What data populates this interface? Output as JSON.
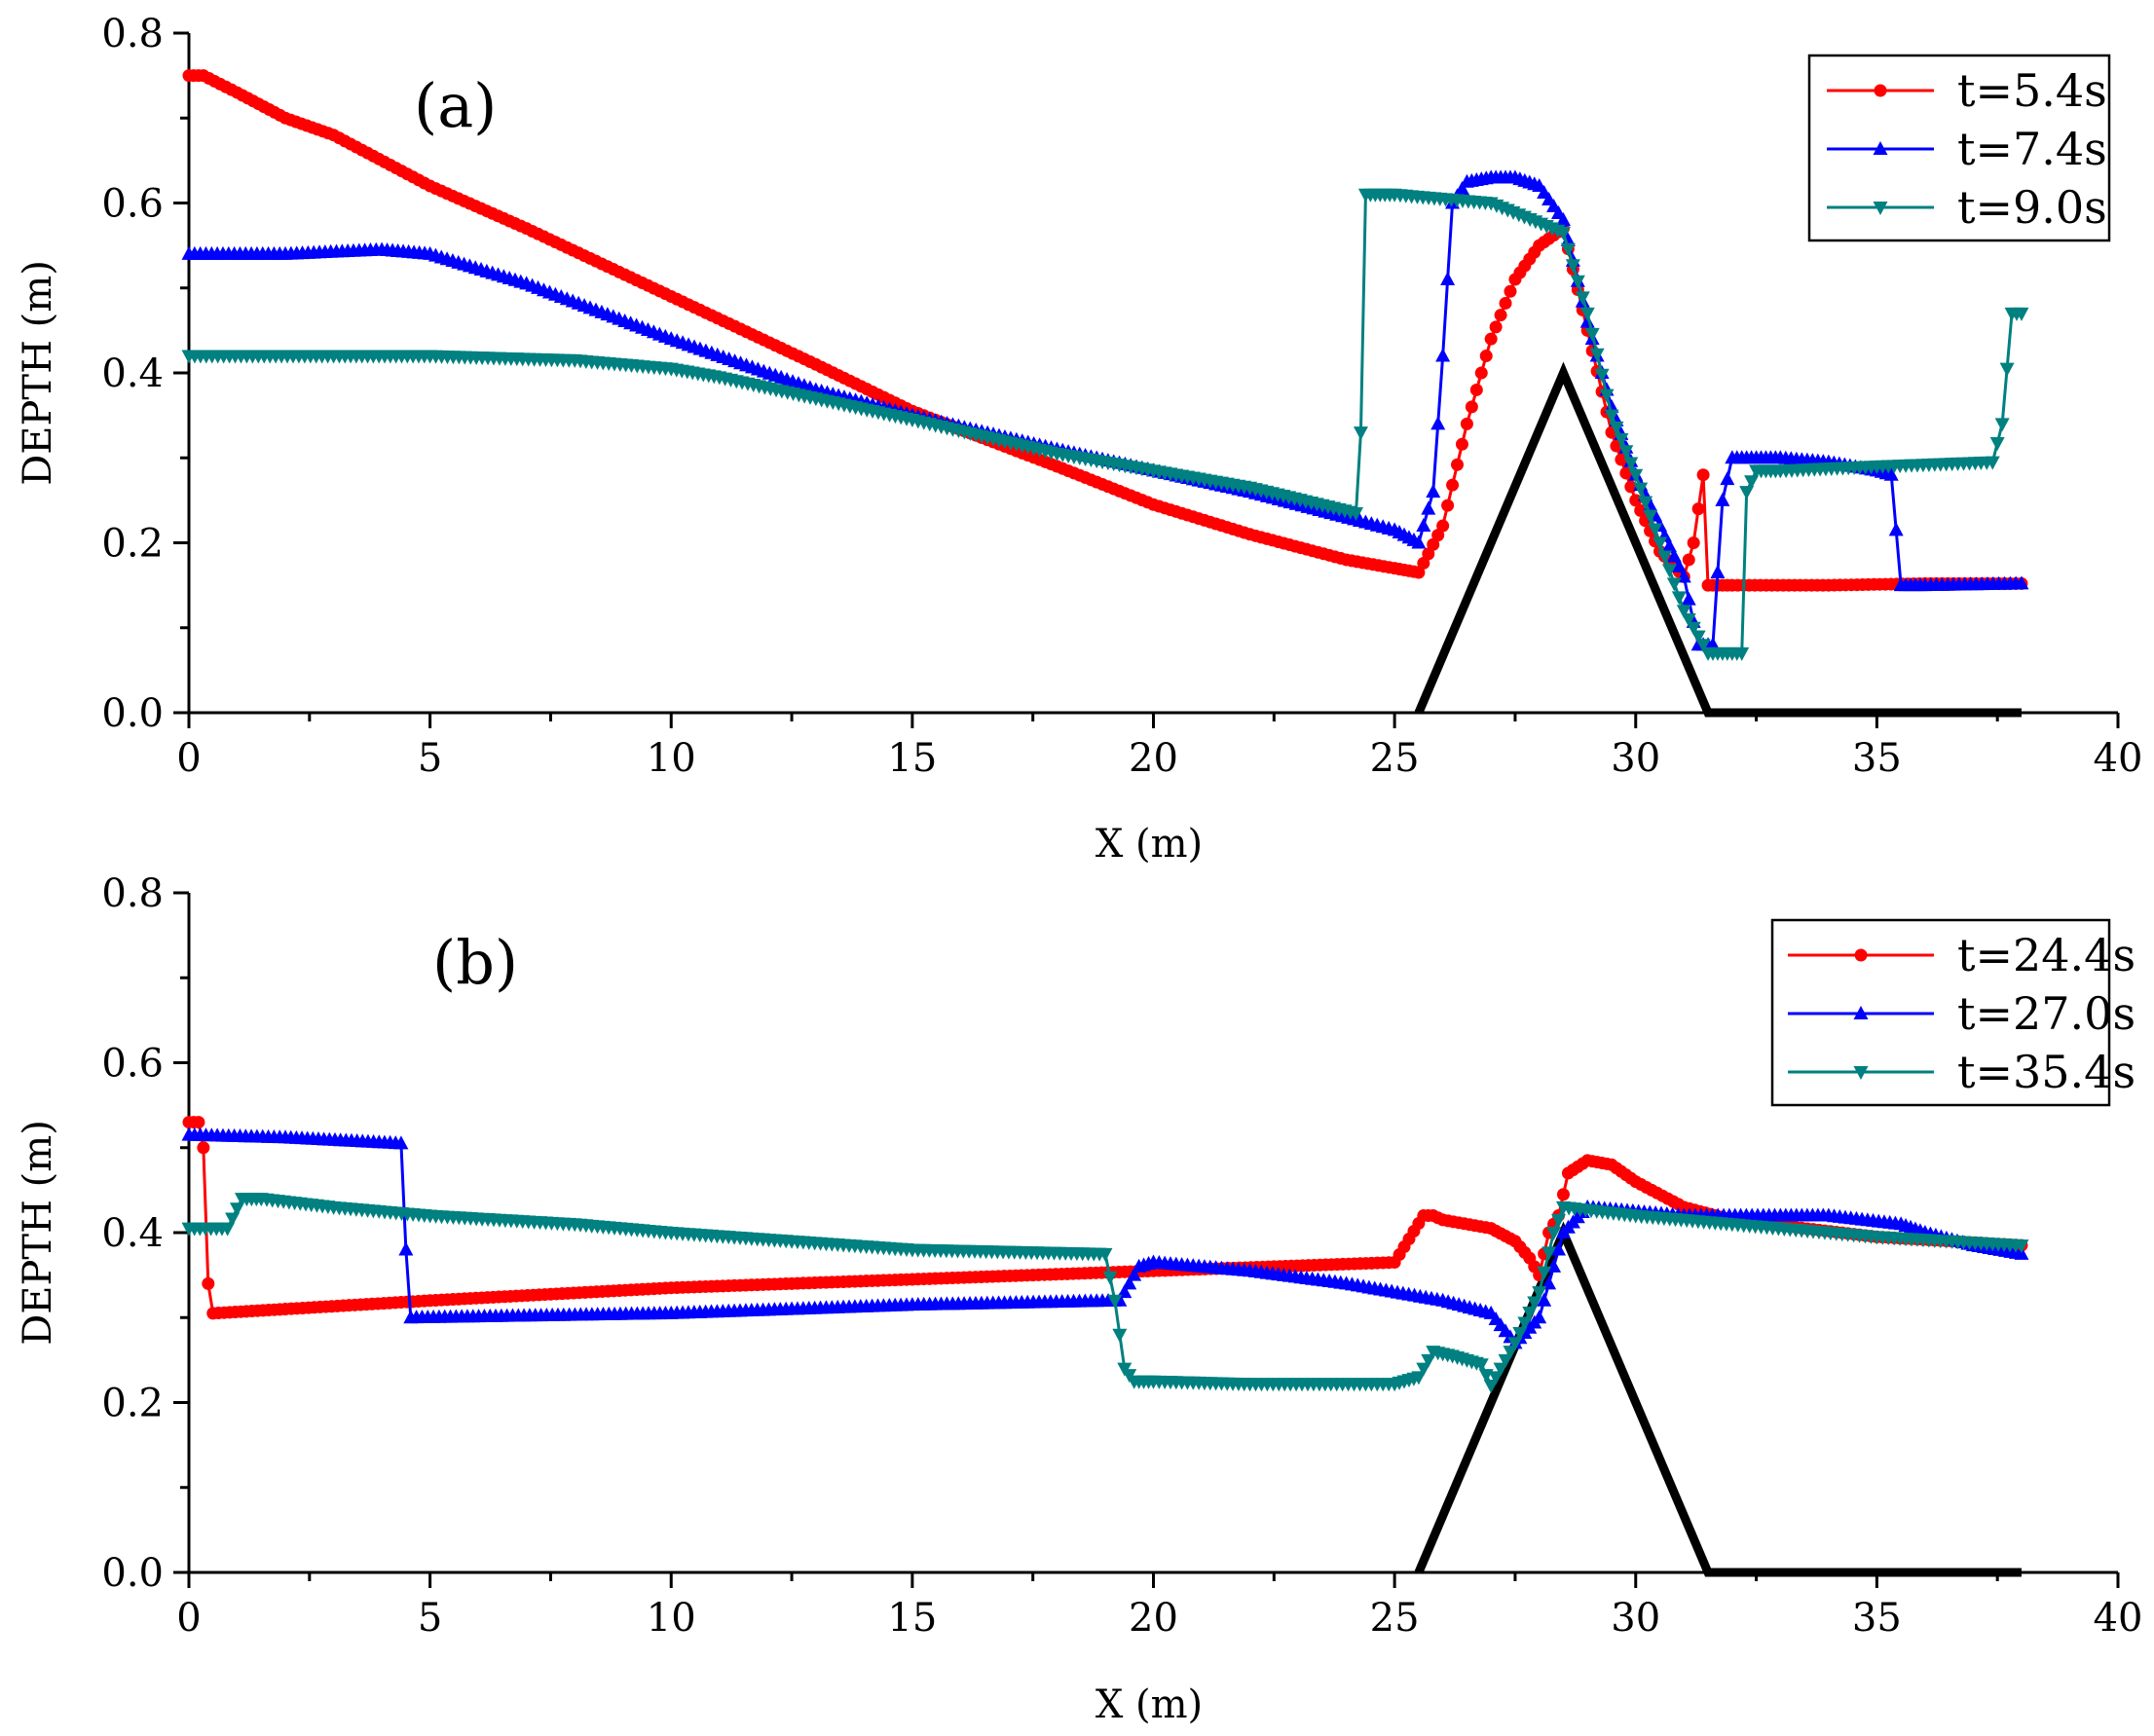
{
  "chart_data": [
    {
      "type": "line",
      "panel_label": "(a)",
      "xlabel": "X (m)",
      "ylabel": "DEPTH (m)",
      "xlim": [
        0,
        40
      ],
      "ylim": [
        0.0,
        0.8
      ],
      "xticks": [
        0,
        5,
        10,
        15,
        20,
        25,
        30,
        35,
        40
      ],
      "xtick_labels": [
        "0",
        "5",
        "10",
        "15",
        "20",
        "25",
        "30",
        "35",
        "40"
      ],
      "yticks": [
        0.0,
        0.2,
        0.4,
        0.6,
        0.8
      ],
      "ytick_labels": [
        "0.0",
        "0.2",
        "0.4",
        "0.6",
        "0.8"
      ],
      "legend_position": "top-right",
      "obstacle": {
        "x": [
          25.5,
          28.5,
          31.5,
          38
        ],
        "y": [
          0.0,
          0.4,
          0.0,
          0.0
        ]
      },
      "series": [
        {
          "name": "t=5.4s",
          "color": "#ff0000",
          "marker": "circle",
          "x": [
            0,
            0.3,
            1,
            2,
            3,
            5,
            7,
            10,
            13,
            15,
            18,
            20,
            22,
            24,
            25,
            25.5,
            26,
            26.5,
            27,
            27.5,
            28,
            28.5,
            29,
            29.5,
            30,
            30.5,
            31,
            31.2,
            31.4,
            31.5,
            32,
            34,
            36,
            38
          ],
          "y": [
            0.75,
            0.75,
            0.73,
            0.7,
            0.68,
            0.62,
            0.57,
            0.49,
            0.41,
            0.355,
            0.29,
            0.245,
            0.21,
            0.18,
            0.17,
            0.165,
            0.22,
            0.34,
            0.44,
            0.51,
            0.55,
            0.57,
            0.45,
            0.33,
            0.25,
            0.19,
            0.16,
            0.2,
            0.28,
            0.15,
            0.15,
            0.15,
            0.152,
            0.152
          ]
        },
        {
          "name": "t=7.4s",
          "color": "#0000ff",
          "marker": "triangle-up",
          "x": [
            0,
            2,
            4,
            5,
            7,
            10,
            13,
            15,
            18,
            20,
            22,
            25,
            25.5,
            25.8,
            26,
            26.2,
            26.5,
            27,
            27.5,
            28,
            28.5,
            29,
            29.5,
            30,
            30.5,
            31,
            31.3,
            31.6,
            31.8,
            32,
            32.5,
            33,
            34,
            35,
            35.3,
            35.5,
            36,
            38
          ],
          "y": [
            0.54,
            0.54,
            0.545,
            0.54,
            0.505,
            0.44,
            0.38,
            0.35,
            0.31,
            0.285,
            0.26,
            0.215,
            0.2,
            0.26,
            0.42,
            0.6,
            0.625,
            0.63,
            0.63,
            0.62,
            0.58,
            0.46,
            0.36,
            0.28,
            0.22,
            0.16,
            0.08,
            0.08,
            0.25,
            0.3,
            0.3,
            0.3,
            0.295,
            0.285,
            0.28,
            0.15,
            0.15,
            0.152
          ]
        },
        {
          "name": "t=9.0s",
          "color": "#008080",
          "marker": "triangle-down",
          "x": [
            0,
            3,
            5,
            8,
            10,
            11,
            13,
            15,
            18,
            20,
            22,
            24.2,
            24.3,
            24.4,
            25,
            27,
            28.5,
            29,
            29.5,
            30,
            30.5,
            31,
            31.5,
            32,
            32.2,
            32.3,
            32.5,
            33,
            35,
            37.4,
            37.6,
            37.8,
            38
          ],
          "y": [
            0.42,
            0.42,
            0.42,
            0.415,
            0.405,
            0.395,
            0.37,
            0.345,
            0.305,
            0.285,
            0.265,
            0.235,
            0.33,
            0.61,
            0.61,
            0.6,
            0.565,
            0.47,
            0.35,
            0.28,
            0.2,
            0.12,
            0.07,
            0.07,
            0.07,
            0.26,
            0.285,
            0.285,
            0.29,
            0.295,
            0.34,
            0.47,
            0.47
          ]
        }
      ]
    },
    {
      "type": "line",
      "panel_label": "(b)",
      "xlabel": "X (m)",
      "ylabel": "DEPTH (m)",
      "xlim": [
        0,
        40
      ],
      "ylim": [
        0.0,
        0.8
      ],
      "xticks": [
        0,
        5,
        10,
        15,
        20,
        25,
        30,
        35,
        40
      ],
      "xtick_labels": [
        "0",
        "5",
        "10",
        "15",
        "20",
        "25",
        "30",
        "35",
        "40"
      ],
      "yticks": [
        0.0,
        0.2,
        0.4,
        0.6,
        0.8
      ],
      "ytick_labels": [
        "0.0",
        "0.2",
        "0.4",
        "0.6",
        "0.8"
      ],
      "legend_position": "top-right",
      "obstacle": {
        "x": [
          25.5,
          28.5,
          31.5,
          38
        ],
        "y": [
          0.0,
          0.4,
          0.0,
          0.0
        ]
      },
      "series": [
        {
          "name": "t=24.4s",
          "color": "#ff0000",
          "marker": "circle",
          "x": [
            0,
            0.2,
            0.3,
            0.4,
            0.5,
            2,
            5,
            10,
            15,
            20,
            25,
            25.6,
            25.8,
            26,
            27,
            27.5,
            27.8,
            28,
            28.2,
            28.4,
            28.6,
            29,
            29.5,
            30,
            31,
            32,
            35,
            38
          ],
          "y": [
            0.53,
            0.53,
            0.5,
            0.34,
            0.305,
            0.31,
            0.32,
            0.335,
            0.345,
            0.355,
            0.365,
            0.42,
            0.42,
            0.415,
            0.405,
            0.39,
            0.37,
            0.35,
            0.4,
            0.42,
            0.47,
            0.485,
            0.48,
            0.46,
            0.43,
            0.415,
            0.395,
            0.385
          ]
        },
        {
          "name": "t=27.0s",
          "color": "#0000ff",
          "marker": "triangle-up",
          "x": [
            0,
            2,
            4.4,
            4.5,
            4.6,
            10,
            15,
            19.3,
            19.5,
            19.7,
            20,
            22,
            24,
            26,
            27,
            27.5,
            28,
            28.5,
            29,
            31,
            33,
            34,
            35.5,
            36,
            37,
            38
          ],
          "y": [
            0.515,
            0.512,
            0.505,
            0.38,
            0.3,
            0.305,
            0.315,
            0.32,
            0.34,
            0.36,
            0.365,
            0.355,
            0.34,
            0.32,
            0.305,
            0.27,
            0.3,
            0.4,
            0.43,
            0.42,
            0.42,
            0.42,
            0.41,
            0.4,
            0.385,
            0.375
          ]
        },
        {
          "name": "t=35.4s",
          "color": "#008080",
          "marker": "triangle-down",
          "x": [
            0,
            0.8,
            1.1,
            1.5,
            3,
            5,
            8,
            10,
            15,
            19,
            19.2,
            19.4,
            19.6,
            20,
            22,
            25,
            25.5,
            25.8,
            26.2,
            26.8,
            27,
            27.5,
            28,
            28.3,
            28.5,
            30,
            32,
            35,
            38
          ],
          "y": [
            0.405,
            0.405,
            0.44,
            0.44,
            0.43,
            0.42,
            0.41,
            0.4,
            0.38,
            0.375,
            0.32,
            0.24,
            0.225,
            0.225,
            0.222,
            0.222,
            0.23,
            0.26,
            0.255,
            0.245,
            0.22,
            0.27,
            0.33,
            0.4,
            0.43,
            0.42,
            0.41,
            0.395,
            0.385
          ]
        }
      ]
    }
  ]
}
